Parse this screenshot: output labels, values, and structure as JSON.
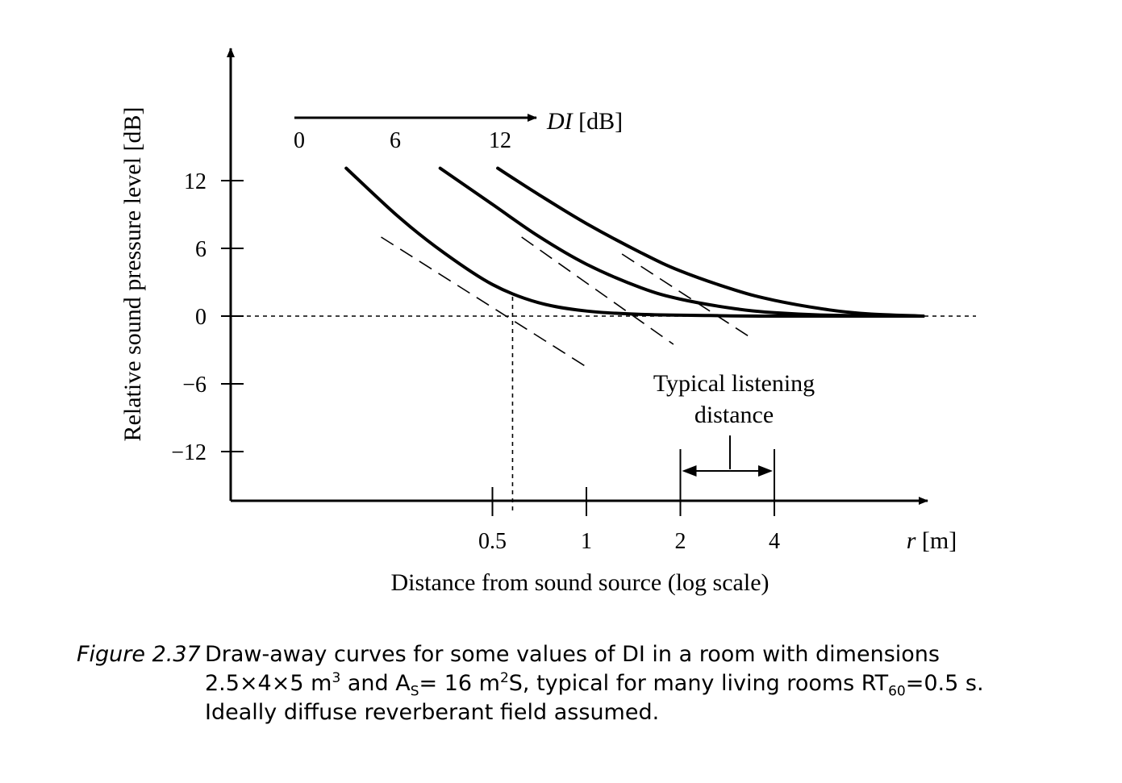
{
  "chart_data": {
    "type": "line",
    "xlabel": "Distance from sound source (log scale)",
    "x_unit_label": "r [m]",
    "x_scale": "log",
    "ylabel": "Relative sound pressure level [dB]",
    "xticks": [
      0.5,
      1,
      2,
      4
    ],
    "xtick_labels": [
      "0.5",
      "1",
      "2",
      "4"
    ],
    "yticks": [
      12,
      6,
      0,
      -6,
      -12
    ],
    "ytick_labels": [
      "12",
      "6",
      "0",
      "−6",
      "−12"
    ],
    "ylim": [
      -16,
      22
    ],
    "xlim": [
      0.13,
      14
    ],
    "di_axis": {
      "label": "DI",
      "unit": "[dB]",
      "values": [
        "0",
        "6",
        "12"
      ]
    },
    "series": [
      {
        "di": 0,
        "points": [
          [
            0.17,
            13.1
          ],
          [
            0.25,
            8.8
          ],
          [
            0.35,
            5.6
          ],
          [
            0.5,
            2.8
          ],
          [
            0.7,
            1.2
          ],
          [
            1.0,
            0.45
          ],
          [
            1.5,
            0.15
          ],
          [
            2.5,
            0.05
          ],
          [
            4.0,
            0.0
          ],
          [
            12.0,
            0.0
          ]
        ],
        "direct_field": [
          [
            0.22,
            7.0
          ],
          [
            1.0,
            -4.5
          ]
        ]
      },
      {
        "di": 6,
        "points": [
          [
            0.34,
            13.1
          ],
          [
            0.5,
            9.9
          ],
          [
            0.7,
            7.1
          ],
          [
            1.0,
            4.6
          ],
          [
            1.5,
            2.5
          ],
          [
            2.0,
            1.5
          ],
          [
            3.0,
            0.65
          ],
          [
            4.0,
            0.3
          ],
          [
            6.0,
            0.08
          ],
          [
            12.0,
            0.0
          ]
        ],
        "direct_field": [
          [
            0.62,
            7.0
          ],
          [
            1.9,
            -2.5
          ]
        ]
      },
      {
        "di": 12,
        "points": [
          [
            0.52,
            13.1
          ],
          [
            0.7,
            10.8
          ],
          [
            1.0,
            8.2
          ],
          [
            1.5,
            5.6
          ],
          [
            2.0,
            4.0
          ],
          [
            3.0,
            2.3
          ],
          [
            4.0,
            1.4
          ],
          [
            6.0,
            0.55
          ],
          [
            8.0,
            0.2
          ],
          [
            12.0,
            0.0
          ]
        ],
        "direct_field": [
          [
            1.3,
            5.5
          ],
          [
            3.4,
            -2.0
          ]
        ]
      }
    ],
    "critical_distance": 0.58,
    "annotation": {
      "text_line1": "Typical listening",
      "text_line2": "distance",
      "range": [
        2,
        4
      ]
    },
    "caption": {
      "label": "Figure 2.37",
      "line1": "Draw-away curves for some values of DI in a room with dimensions",
      "line2_a": "2.5×4×5 m",
      "line2_b": " and A",
      "line2_c": "= 16 m",
      "line2_d": "S, typical for many living rooms RT",
      "line2_e": "=0.5 s.",
      "sup3": "3",
      "sup2": "2",
      "sub_s": "S",
      "sub_60": "60",
      "line3": "Ideally diffuse reverberant field assumed."
    }
  }
}
